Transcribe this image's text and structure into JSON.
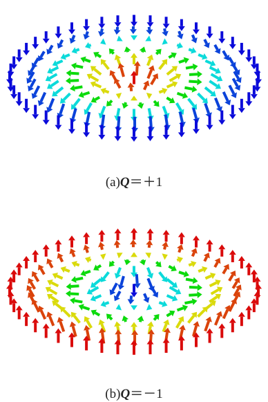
{
  "figures": [
    {
      "label": "(a)",
      "symbol": "Q",
      "value": "＝＋1"
    },
    {
      "label": "(b)",
      "symbol": "Q",
      "value": "＝－1"
    }
  ]
}
